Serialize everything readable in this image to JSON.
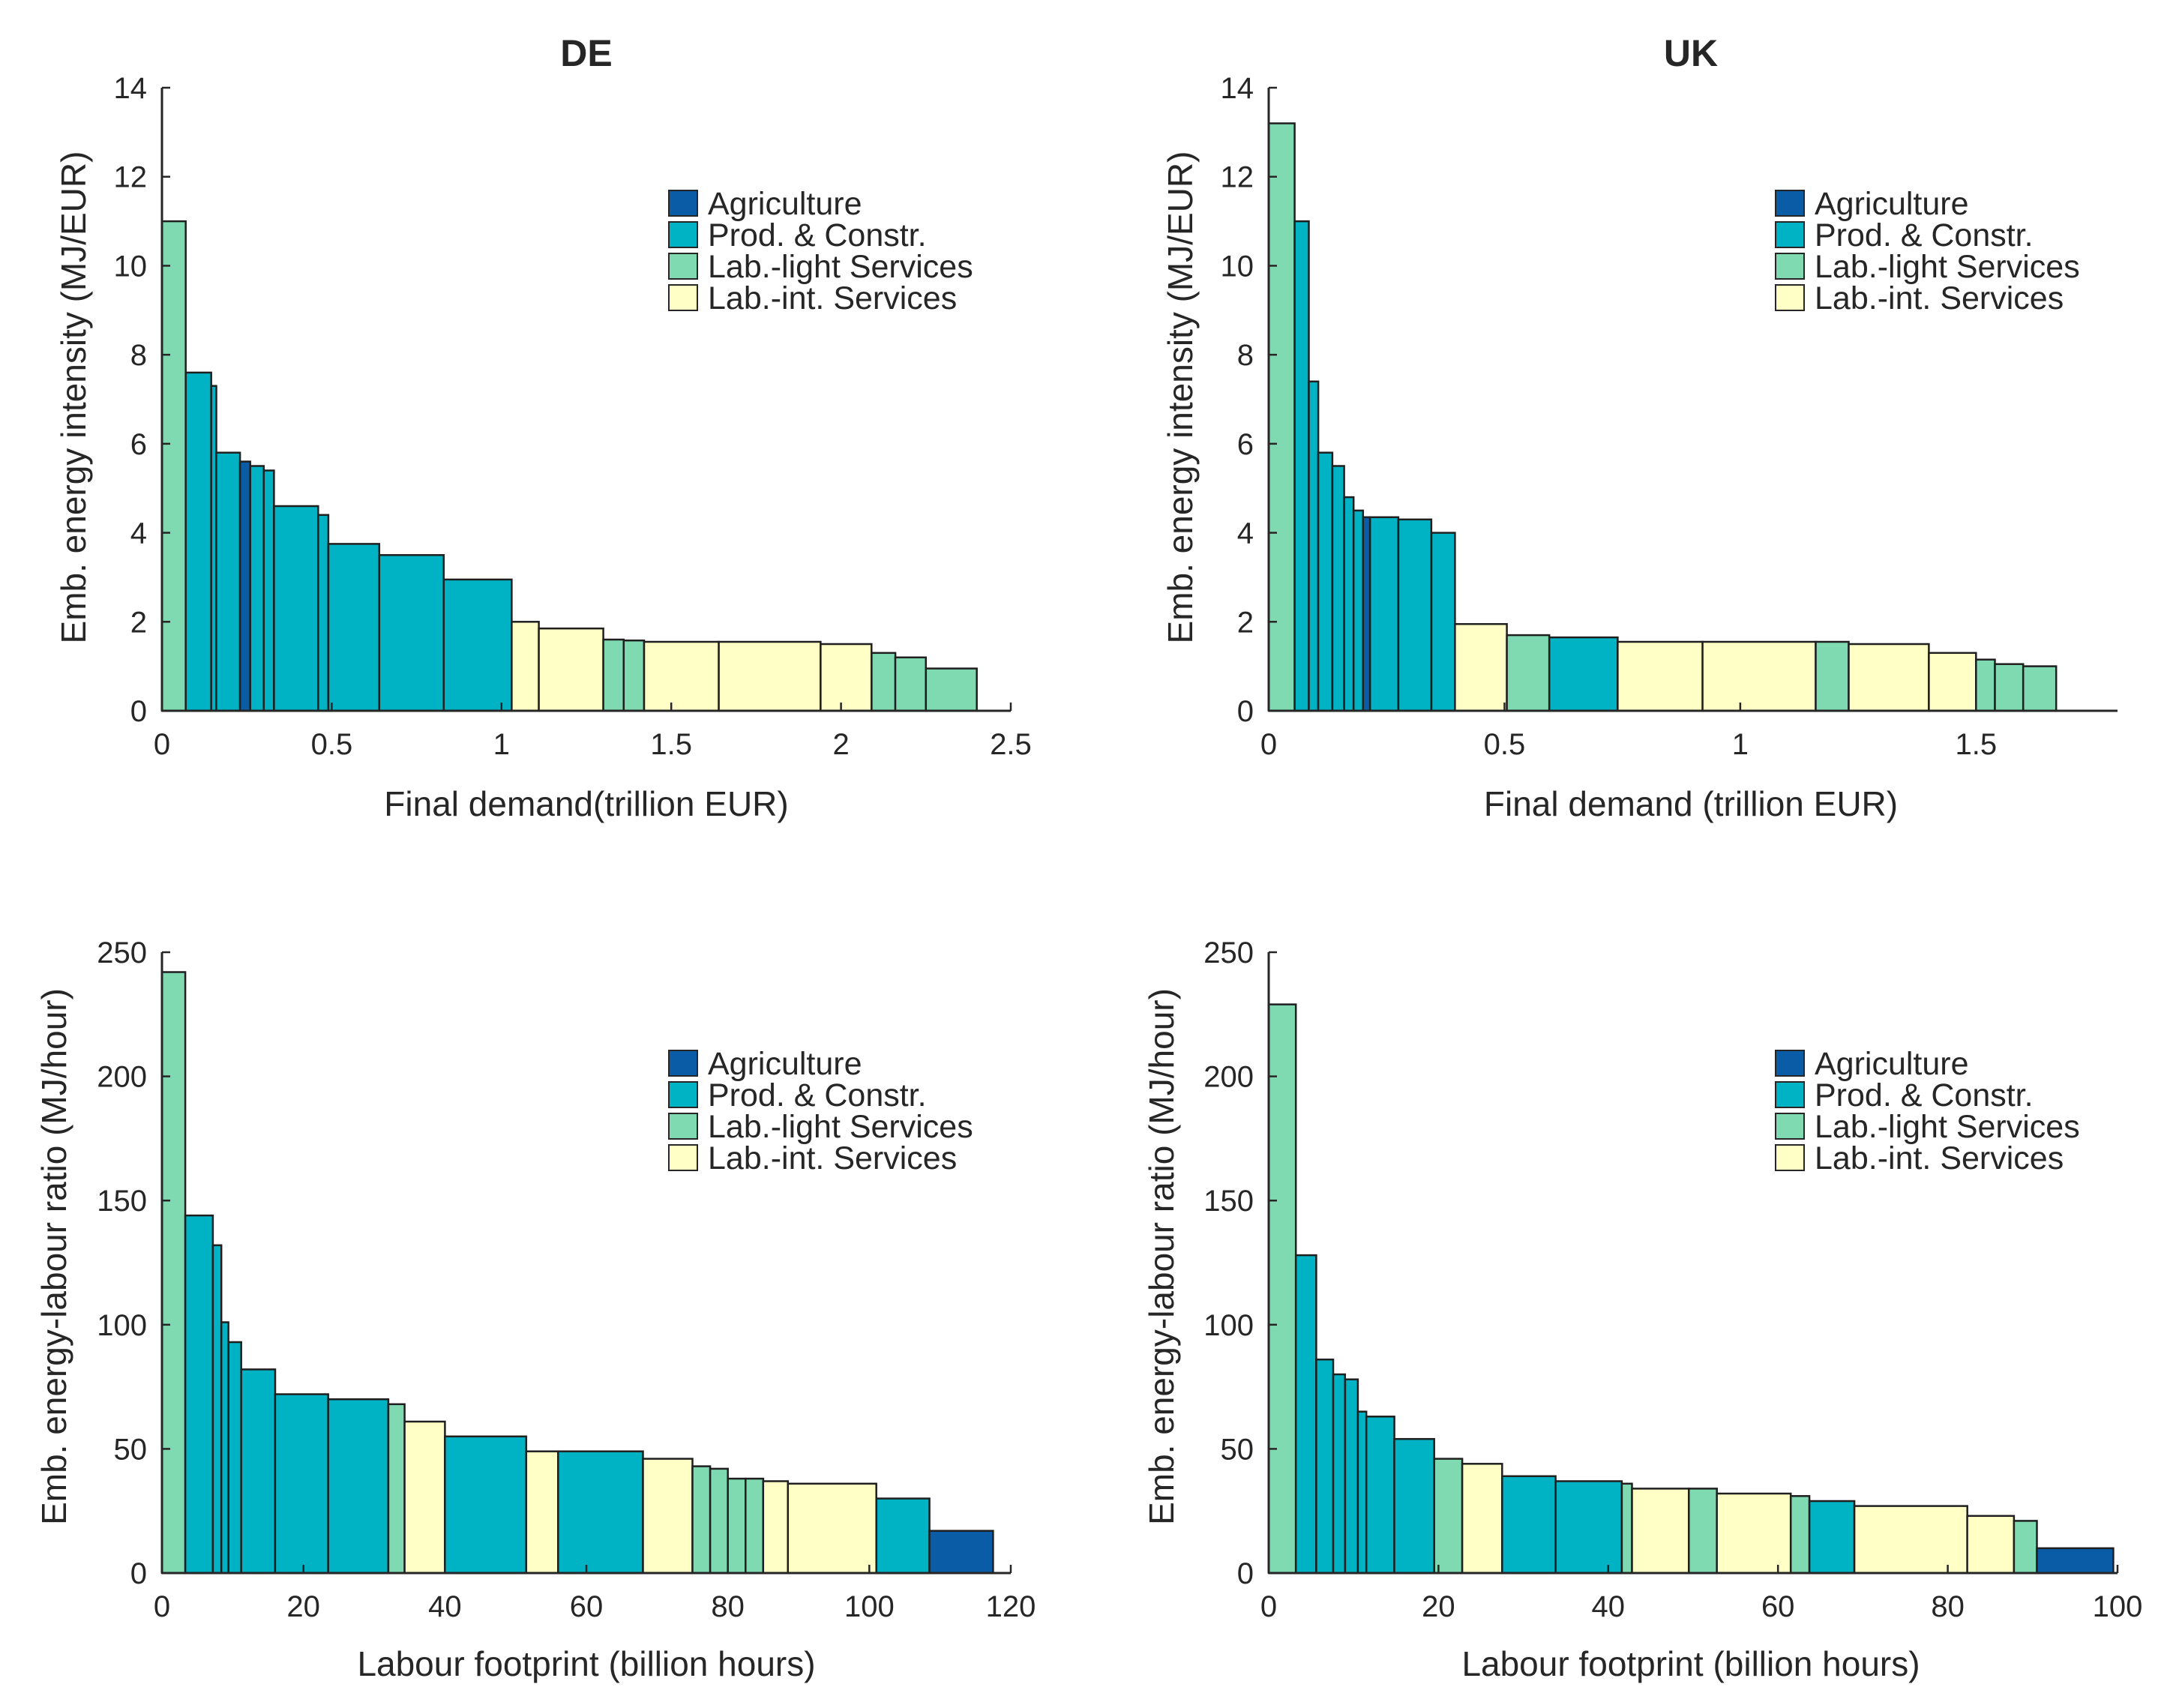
{
  "categories": [
    {
      "key": "ag",
      "name": "Agriculture",
      "color": "#0a5ca6"
    },
    {
      "key": "pc",
      "name": "Prod. & Constr.",
      "color": "#00b3c4"
    },
    {
      "key": "ll",
      "name": "Lab.-light Services",
      "color": "#7fd9b1"
    },
    {
      "key": "li",
      "name": "Lab.-int. Services",
      "color": "#ffffc6"
    }
  ],
  "chart_data": [
    {
      "type": "bar",
      "title": "DE",
      "xlabel": "Final demand(trillion EUR)",
      "ylabel": "Emb. energy intensity (MJ/EUR)",
      "xlim": [
        0,
        2.5
      ],
      "ylim": [
        0,
        14
      ],
      "xticks": [
        "0",
        "0.5",
        "1",
        "1.5",
        "2",
        "2.5"
      ],
      "xtick_values": [
        0,
        0.5,
        1,
        1.5,
        2,
        2.5
      ],
      "yticks": [
        "0",
        "2",
        "4",
        "6",
        "8",
        "10",
        "12",
        "14"
      ],
      "ytick_values": [
        0,
        2,
        4,
        6,
        8,
        10,
        12,
        14
      ],
      "legend_position": "top-right",
      "bars": [
        {
          "x0": 0.0,
          "x1": 0.07,
          "value": 11.0,
          "cat": "ll"
        },
        {
          "x0": 0.07,
          "x1": 0.145,
          "value": 7.6,
          "cat": "pc"
        },
        {
          "x0": 0.145,
          "x1": 0.16,
          "value": 7.3,
          "cat": "pc"
        },
        {
          "x0": 0.16,
          "x1": 0.23,
          "value": 5.8,
          "cat": "pc"
        },
        {
          "x0": 0.23,
          "x1": 0.26,
          "value": 5.6,
          "cat": "ag"
        },
        {
          "x0": 0.26,
          "x1": 0.3,
          "value": 5.5,
          "cat": "pc"
        },
        {
          "x0": 0.3,
          "x1": 0.33,
          "value": 5.4,
          "cat": "pc"
        },
        {
          "x0": 0.33,
          "x1": 0.46,
          "value": 4.6,
          "cat": "pc"
        },
        {
          "x0": 0.46,
          "x1": 0.49,
          "value": 4.4,
          "cat": "pc"
        },
        {
          "x0": 0.49,
          "x1": 0.64,
          "value": 3.75,
          "cat": "pc"
        },
        {
          "x0": 0.64,
          "x1": 0.83,
          "value": 3.5,
          "cat": "pc"
        },
        {
          "x0": 0.83,
          "x1": 1.03,
          "value": 2.95,
          "cat": "pc"
        },
        {
          "x0": 1.03,
          "x1": 1.11,
          "value": 2.0,
          "cat": "li"
        },
        {
          "x0": 1.11,
          "x1": 1.3,
          "value": 1.85,
          "cat": "li"
        },
        {
          "x0": 1.3,
          "x1": 1.36,
          "value": 1.6,
          "cat": "ll"
        },
        {
          "x0": 1.36,
          "x1": 1.42,
          "value": 1.58,
          "cat": "ll"
        },
        {
          "x0": 1.42,
          "x1": 1.64,
          "value": 1.55,
          "cat": "li"
        },
        {
          "x0": 1.64,
          "x1": 1.94,
          "value": 1.55,
          "cat": "li"
        },
        {
          "x0": 1.94,
          "x1": 2.09,
          "value": 1.5,
          "cat": "li"
        },
        {
          "x0": 2.09,
          "x1": 2.16,
          "value": 1.3,
          "cat": "ll"
        },
        {
          "x0": 2.16,
          "x1": 2.25,
          "value": 1.2,
          "cat": "ll"
        },
        {
          "x0": 2.25,
          "x1": 2.4,
          "value": 0.95,
          "cat": "ll"
        }
      ]
    },
    {
      "type": "bar",
      "title": "UK",
      "xlabel": "Final demand (trillion EUR)",
      "ylabel": "Emb. energy intensity (MJ/EUR)",
      "xlim": [
        0,
        1.8
      ],
      "ylim": [
        0,
        14
      ],
      "xticks": [
        "0",
        "0.5",
        "1",
        "1.5"
      ],
      "xtick_values": [
        0,
        0.5,
        1,
        1.5
      ],
      "yticks": [
        "0",
        "2",
        "4",
        "6",
        "8",
        "10",
        "12",
        "14"
      ],
      "ytick_values": [
        0,
        2,
        4,
        6,
        8,
        10,
        12,
        14
      ],
      "legend_position": "top-right",
      "bars": [
        {
          "x0": 0.0,
          "x1": 0.055,
          "value": 13.2,
          "cat": "ll"
        },
        {
          "x0": 0.055,
          "x1": 0.085,
          "value": 11.0,
          "cat": "pc"
        },
        {
          "x0": 0.085,
          "x1": 0.105,
          "value": 7.4,
          "cat": "pc"
        },
        {
          "x0": 0.105,
          "x1": 0.135,
          "value": 5.8,
          "cat": "pc"
        },
        {
          "x0": 0.135,
          "x1": 0.16,
          "value": 5.5,
          "cat": "pc"
        },
        {
          "x0": 0.16,
          "x1": 0.18,
          "value": 4.8,
          "cat": "pc"
        },
        {
          "x0": 0.18,
          "x1": 0.2,
          "value": 4.5,
          "cat": "pc"
        },
        {
          "x0": 0.2,
          "x1": 0.215,
          "value": 4.35,
          "cat": "ag"
        },
        {
          "x0": 0.215,
          "x1": 0.275,
          "value": 4.35,
          "cat": "pc"
        },
        {
          "x0": 0.275,
          "x1": 0.345,
          "value": 4.3,
          "cat": "pc"
        },
        {
          "x0": 0.345,
          "x1": 0.395,
          "value": 4.0,
          "cat": "pc"
        },
        {
          "x0": 0.395,
          "x1": 0.505,
          "value": 1.95,
          "cat": "li"
        },
        {
          "x0": 0.505,
          "x1": 0.595,
          "value": 1.7,
          "cat": "ll"
        },
        {
          "x0": 0.595,
          "x1": 0.74,
          "value": 1.65,
          "cat": "pc"
        },
        {
          "x0": 0.74,
          "x1": 0.92,
          "value": 1.55,
          "cat": "li"
        },
        {
          "x0": 0.92,
          "x1": 1.16,
          "value": 1.55,
          "cat": "li"
        },
        {
          "x0": 1.16,
          "x1": 1.23,
          "value": 1.55,
          "cat": "ll"
        },
        {
          "x0": 1.23,
          "x1": 1.4,
          "value": 1.5,
          "cat": "li"
        },
        {
          "x0": 1.4,
          "x1": 1.5,
          "value": 1.3,
          "cat": "li"
        },
        {
          "x0": 1.5,
          "x1": 1.54,
          "value": 1.15,
          "cat": "ll"
        },
        {
          "x0": 1.54,
          "x1": 1.6,
          "value": 1.05,
          "cat": "ll"
        },
        {
          "x0": 1.6,
          "x1": 1.67,
          "value": 1.0,
          "cat": "ll"
        }
      ]
    },
    {
      "type": "bar",
      "title": "",
      "xlabel": "Labour footprint (billion hours)",
      "ylabel": "Emb. energy-labour ratio (MJ/hour)",
      "xlim": [
        0,
        120
      ],
      "ylim": [
        0,
        250
      ],
      "xticks": [
        "0",
        "20",
        "40",
        "60",
        "80",
        "100",
        "120"
      ],
      "xtick_values": [
        0,
        20,
        40,
        60,
        80,
        100,
        120
      ],
      "yticks": [
        "0",
        "50",
        "100",
        "150",
        "200",
        "250"
      ],
      "ytick_values": [
        0,
        50,
        100,
        150,
        200,
        250
      ],
      "legend_position": "top-right",
      "bars": [
        {
          "x0": 0,
          "x1": 3.3,
          "value": 242,
          "cat": "ll"
        },
        {
          "x0": 3.3,
          "x1": 7.2,
          "value": 144,
          "cat": "pc"
        },
        {
          "x0": 7.2,
          "x1": 8.4,
          "value": 132,
          "cat": "pc"
        },
        {
          "x0": 8.4,
          "x1": 9.4,
          "value": 101,
          "cat": "pc"
        },
        {
          "x0": 9.4,
          "x1": 11.2,
          "value": 93,
          "cat": "pc"
        },
        {
          "x0": 11.2,
          "x1": 16.0,
          "value": 82,
          "cat": "pc"
        },
        {
          "x0": 16.0,
          "x1": 23.5,
          "value": 72,
          "cat": "pc"
        },
        {
          "x0": 23.5,
          "x1": 32.0,
          "value": 70,
          "cat": "pc"
        },
        {
          "x0": 32.0,
          "x1": 34.3,
          "value": 68,
          "cat": "ll"
        },
        {
          "x0": 34.3,
          "x1": 40.0,
          "value": 61,
          "cat": "li"
        },
        {
          "x0": 40.0,
          "x1": 51.5,
          "value": 55,
          "cat": "pc"
        },
        {
          "x0": 51.5,
          "x1": 56.0,
          "value": 49,
          "cat": "li"
        },
        {
          "x0": 56.0,
          "x1": 68.0,
          "value": 49,
          "cat": "pc"
        },
        {
          "x0": 68.0,
          "x1": 75.0,
          "value": 46,
          "cat": "li"
        },
        {
          "x0": 75.0,
          "x1": 77.5,
          "value": 43,
          "cat": "ll"
        },
        {
          "x0": 77.5,
          "x1": 80.0,
          "value": 42,
          "cat": "ll"
        },
        {
          "x0": 80.0,
          "x1": 82.5,
          "value": 38,
          "cat": "ll"
        },
        {
          "x0": 82.5,
          "x1": 85.0,
          "value": 38,
          "cat": "ll"
        },
        {
          "x0": 85.0,
          "x1": 88.5,
          "value": 37,
          "cat": "li"
        },
        {
          "x0": 88.5,
          "x1": 101.0,
          "value": 36,
          "cat": "li"
        },
        {
          "x0": 101.0,
          "x1": 108.5,
          "value": 30,
          "cat": "pc"
        },
        {
          "x0": 108.5,
          "x1": 117.5,
          "value": 17,
          "cat": "ag"
        }
      ]
    },
    {
      "type": "bar",
      "title": "",
      "xlabel": "Labour footprint (billion hours)",
      "ylabel": "Emb. energy-labour ratio (MJ/hour)",
      "xlim": [
        0,
        100
      ],
      "ylim": [
        0,
        250
      ],
      "xticks": [
        "0",
        "20",
        "40",
        "60",
        "80",
        "100"
      ],
      "xtick_values": [
        0,
        20,
        40,
        60,
        80,
        100
      ],
      "yticks": [
        "0",
        "50",
        "100",
        "150",
        "200",
        "250"
      ],
      "ytick_values": [
        0,
        50,
        100,
        150,
        200,
        250
      ],
      "legend_position": "top-right",
      "bars": [
        {
          "x0": 0,
          "x1": 3.2,
          "value": 229,
          "cat": "ll"
        },
        {
          "x0": 3.2,
          "x1": 5.6,
          "value": 128,
          "cat": "pc"
        },
        {
          "x0": 5.6,
          "x1": 7.6,
          "value": 86,
          "cat": "pc"
        },
        {
          "x0": 7.6,
          "x1": 9.0,
          "value": 80,
          "cat": "pc"
        },
        {
          "x0": 9.0,
          "x1": 10.5,
          "value": 78,
          "cat": "pc"
        },
        {
          "x0": 10.5,
          "x1": 11.5,
          "value": 65,
          "cat": "pc"
        },
        {
          "x0": 11.5,
          "x1": 14.8,
          "value": 63,
          "cat": "pc"
        },
        {
          "x0": 14.8,
          "x1": 19.5,
          "value": 54,
          "cat": "pc"
        },
        {
          "x0": 19.5,
          "x1": 22.8,
          "value": 46,
          "cat": "ll"
        },
        {
          "x0": 22.8,
          "x1": 27.5,
          "value": 44,
          "cat": "li"
        },
        {
          "x0": 27.5,
          "x1": 33.8,
          "value": 39,
          "cat": "pc"
        },
        {
          "x0": 33.8,
          "x1": 41.6,
          "value": 37,
          "cat": "pc"
        },
        {
          "x0": 41.6,
          "x1": 42.8,
          "value": 36,
          "cat": "ll"
        },
        {
          "x0": 42.8,
          "x1": 49.5,
          "value": 34,
          "cat": "li"
        },
        {
          "x0": 49.5,
          "x1": 52.8,
          "value": 34,
          "cat": "ll"
        },
        {
          "x0": 52.8,
          "x1": 61.5,
          "value": 32,
          "cat": "li"
        },
        {
          "x0": 61.5,
          "x1": 63.7,
          "value": 31,
          "cat": "ll"
        },
        {
          "x0": 63.7,
          "x1": 69.0,
          "value": 29,
          "cat": "pc"
        },
        {
          "x0": 69.0,
          "x1": 82.3,
          "value": 27,
          "cat": "li"
        },
        {
          "x0": 82.3,
          "x1": 87.8,
          "value": 23,
          "cat": "li"
        },
        {
          "x0": 87.8,
          "x1": 90.5,
          "value": 21,
          "cat": "ll"
        },
        {
          "x0": 90.5,
          "x1": 99.5,
          "value": 10,
          "cat": "ag"
        }
      ]
    }
  ]
}
